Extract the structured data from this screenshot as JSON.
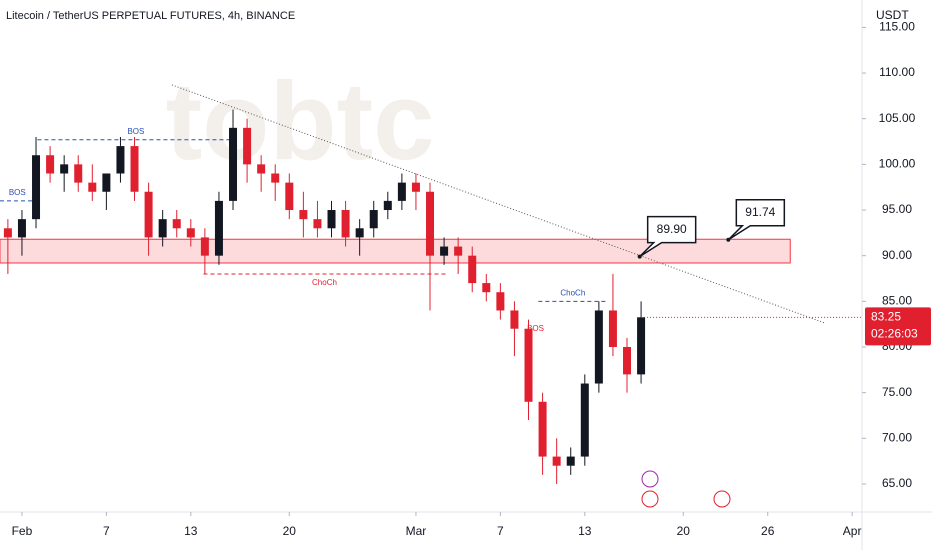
{
  "chart_data": {
    "type": "candlestick",
    "title": "Litecoin / TetherUS PERPETUAL FUTURES, 4h, BINANCE",
    "y_axis_label": "USDT",
    "watermark": "tobtc",
    "up_color": "#131722",
    "down_color": "#e0202f",
    "x": [
      -1,
      0,
      1,
      2,
      3,
      4,
      5,
      6,
      7,
      8,
      9,
      10,
      11,
      12,
      13,
      14,
      15,
      16,
      17,
      18,
      19,
      20,
      21,
      22,
      23,
      24,
      25,
      26,
      27,
      28,
      29,
      30,
      31,
      32,
      33,
      34,
      35,
      36,
      37,
      38,
      39,
      40,
      41,
      42,
      43,
      44
    ],
    "open": [
      93,
      92,
      94,
      101,
      99,
      100,
      98,
      97,
      99,
      102,
      97,
      92,
      94,
      93,
      92,
      90,
      96,
      104,
      100,
      99,
      98,
      95,
      94,
      93,
      95,
      92,
      93,
      95,
      96,
      98,
      97,
      90,
      91,
      90,
      87,
      86,
      84,
      82,
      74,
      68,
      67,
      68,
      76,
      84,
      80,
      77
    ],
    "high": [
      94,
      95,
      103,
      102,
      101,
      101,
      100,
      99,
      103,
      103,
      98,
      95,
      95,
      94,
      93,
      97,
      106,
      105,
      101,
      100,
      99,
      97,
      96,
      96,
      96,
      94,
      96,
      97,
      99,
      99,
      98,
      92,
      92,
      91,
      88,
      87,
      85,
      83,
      75,
      70,
      69,
      77,
      85,
      88,
      81,
      85
    ],
    "low": [
      88,
      90,
      93,
      98,
      97,
      97,
      96,
      95,
      98,
      96,
      90,
      91,
      92,
      91,
      88,
      89,
      95,
      98,
      97,
      96,
      94,
      92,
      92,
      92,
      91,
      90,
      92,
      94,
      95,
      95,
      84,
      89,
      88,
      86,
      85,
      83,
      79,
      72,
      66,
      65,
      66,
      67,
      75,
      79,
      75,
      76
    ],
    "close": [
      92,
      94,
      101,
      99,
      100,
      98,
      97,
      99,
      102,
      97,
      92,
      94,
      93,
      92,
      90,
      96,
      104,
      100,
      99,
      98,
      95,
      94,
      93,
      95,
      92,
      93,
      95,
      96,
      98,
      97,
      90,
      91,
      90,
      87,
      86,
      84,
      82,
      74,
      68,
      67,
      68,
      76,
      84,
      80,
      77,
      83.25
    ],
    "xlim": [
      -1.56,
      59.7
    ],
    "xticks": [
      {
        "value": 0,
        "label": "Feb"
      },
      {
        "value": 6,
        "label": "7"
      },
      {
        "value": 12,
        "label": "13"
      },
      {
        "value": 19,
        "label": "20"
      },
      {
        "value": 28,
        "label": "Mar"
      },
      {
        "value": 34,
        "label": "7"
      },
      {
        "value": 40,
        "label": "13"
      },
      {
        "value": 47,
        "label": "20"
      },
      {
        "value": 53,
        "label": "26"
      },
      {
        "value": 59,
        "label": "Apr"
      }
    ],
    "ylim": [
      61.93,
      118
    ],
    "yticks": [
      {
        "value": 65,
        "label": "65.00"
      },
      {
        "value": 70,
        "label": "70.00"
      },
      {
        "value": 75,
        "label": "75.00"
      },
      {
        "value": 80,
        "label": "80.00"
      },
      {
        "value": 85,
        "label": "85.00"
      },
      {
        "value": 90,
        "label": "90.00"
      },
      {
        "value": 95,
        "label": "95.00"
      },
      {
        "value": 100,
        "label": "100.00"
      },
      {
        "value": 105,
        "label": "105.00"
      },
      {
        "value": 110,
        "label": "110.00"
      },
      {
        "value": 115,
        "label": "115.00"
      }
    ],
    "zone": {
      "y": [
        89.2,
        91.8
      ],
      "x": [
        -1.56,
        54.6
      ]
    },
    "trendline": {
      "x": [
        10.66,
        57.1
      ],
      "y": [
        108.7,
        82.6
      ]
    },
    "levels": [
      {
        "label": "BOS",
        "value": 96,
        "x": [
          -1.56,
          0.9
        ],
        "color": "#2a4fb5"
      },
      {
        "label": "BOS",
        "value": 102.7,
        "x": [
          1.1,
          15.1
        ],
        "color": "#2a4fb5"
      },
      {
        "label": "ChoCh",
        "value": 88,
        "x": [
          12.9,
          30.1
        ],
        "color": "#e0202f"
      },
      {
        "label": "ChoCh",
        "value": 85,
        "x": [
          36.7,
          41.6
        ],
        "color": "#2a4fb5"
      }
    ],
    "notes": [
      {
        "label": "BOS",
        "value": 82,
        "x": 36.5,
        "color": "#e0202f"
      }
    ],
    "callouts": [
      {
        "label": "89.90",
        "value": 89.9,
        "x": 43.9
      },
      {
        "label": "91.74",
        "value": 91.74,
        "x": 50.2
      }
    ],
    "countdown": "02:26:03"
  }
}
